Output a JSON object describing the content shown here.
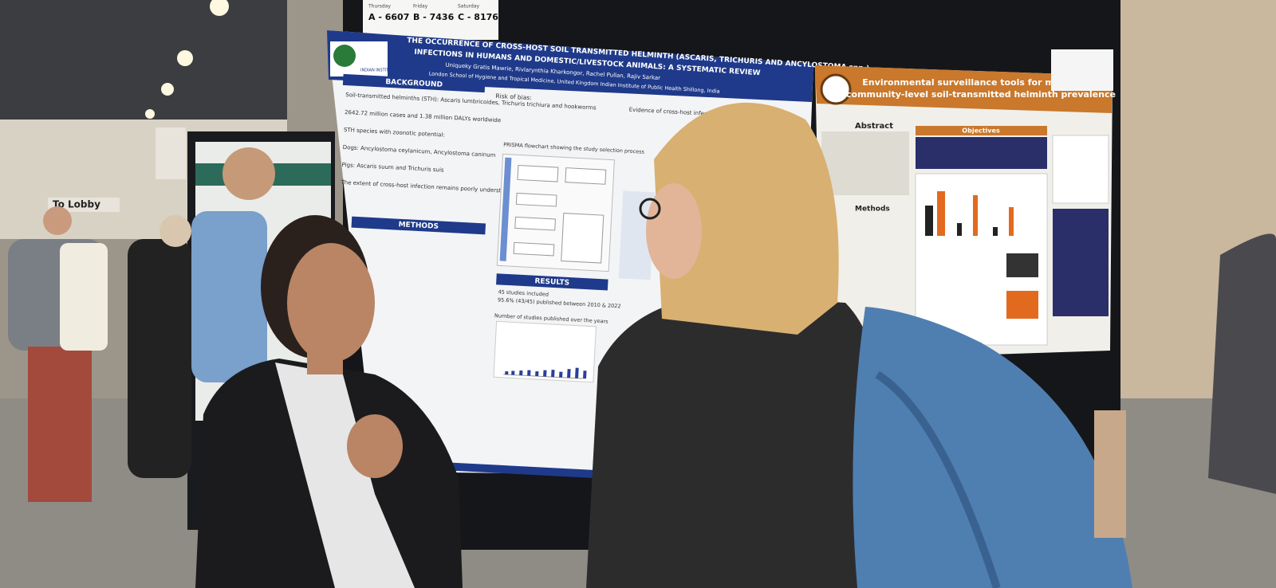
{
  "signs": {
    "day_numbers": [
      {
        "day": "Thursday",
        "code": "A - 6607"
      },
      {
        "day": "Friday",
        "code": "B - 7436"
      },
      {
        "day": "Saturday",
        "code": "C - 8176"
      }
    ],
    "lobby": "To Lobby"
  },
  "main_poster": {
    "title_line1": "THE OCCURRENCE OF CROSS-HOST SOIL TRANSMITTED HELMINTH (ASCARIS, TRICHURIS AND ANCYLOSTOMA spp.)",
    "title_line2": "INFECTIONS IN HUMANS AND DOMESTIC/LIVESTOCK ANIMALS: A SYSTEMATIC REVIEW",
    "authors": "Uniqueky Gratis Mawrie, Rivlarynthia Kharkongor, Rachel Pullan, Rajiv Sarkar",
    "affiliations": "London School of Hygiene and Tropical Medicine, United Kingdom   Indian Institute of Public Health Shillong, India",
    "logo_text": "INDIAN INSTITUTE OF PUBLIC HEALTH",
    "sections": {
      "background": "BACKGROUND",
      "methods": "METHODS",
      "results": "RESULTS"
    },
    "background_points": [
      "Soil-transmitted helminths (STH): Ascaris lumbricoides, Trichuris trichiura and hookworms",
      "2642.72 million cases and 1.38 million DALYs worldwide",
      "STH species with zoonotic potential:",
      "Dogs: Ancylostoma ceylanicum, Ancylostoma caninum",
      "Pigs: Ascaris suum and Trichuris suis",
      "The extent of cross-host infection remains poorly understood"
    ],
    "risk_of_bias": "Risk of bias:",
    "prisma": "PRISMA flowchart showing the study selection process",
    "results_points": [
      "45 studies included",
      "95.6% (43/45) published between 2010 & 2022"
    ],
    "chart_caption": "Number of studies published over the years",
    "evidence": "Evidence of cross-host infection"
  },
  "right_poster": {
    "title_line1": "Environmental surveillance tools for monitoring",
    "title_line2": "community-level soil-transmitted helminth prevalence",
    "abstract": "Abstract",
    "objectives": "Objectives",
    "methods": "Methods"
  }
}
